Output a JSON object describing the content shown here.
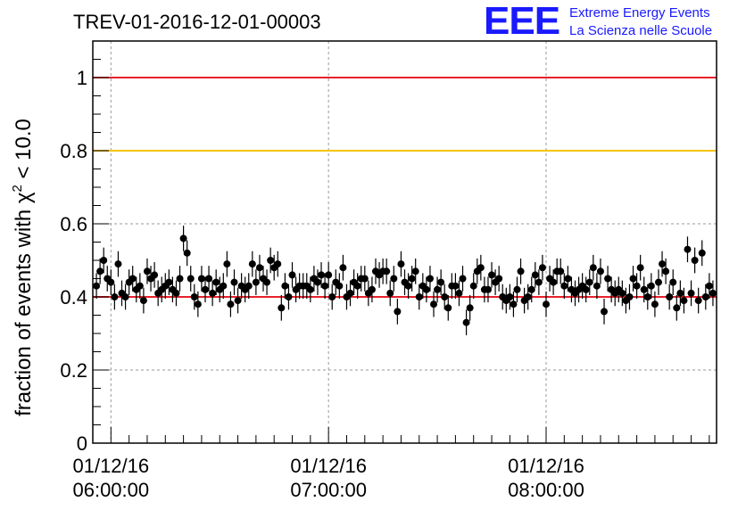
{
  "chart_data": {
    "type": "scatter",
    "title": "TREV-01-2016-12-01-00003",
    "ylabel": "fraction of events with χ² < 10.0",
    "ylabel_parts": {
      "pre": "fraction of events with ",
      "chi": "χ",
      "sup": "2",
      "post": " < 10.0"
    },
    "xlabel": "",
    "x_unit": "minutes after 01/12/16 05:55:00",
    "xlim": [
      0,
      172
    ],
    "ylim": [
      0,
      1.1
    ],
    "yticks": [
      0,
      0.2,
      0.4,
      0.6,
      0.8,
      1
    ],
    "yticklabels": [
      "0",
      "0.2",
      "0.4",
      "0.6",
      "0.8",
      "1"
    ],
    "xticks": [
      {
        "x": 5,
        "date": "01/12/16",
        "time": "06:00:00"
      },
      {
        "x": 65,
        "date": "01/12/16",
        "time": "07:00:00"
      },
      {
        "x": 125,
        "date": "01/12/16",
        "time": "08:00:00"
      }
    ],
    "grid": true,
    "reference_lines": [
      {
        "y": 1.0,
        "color": "#e8202a"
      },
      {
        "y": 0.8,
        "color": "#f5c400"
      },
      {
        "y": 0.4,
        "color": "#e8202a"
      }
    ],
    "error": 0.035,
    "x": [
      1,
      2,
      3,
      4,
      5,
      6,
      7,
      8,
      9,
      10,
      11,
      12,
      13,
      14,
      15,
      16,
      17,
      18,
      19,
      20,
      21,
      22,
      23,
      24,
      25,
      26,
      27,
      28,
      29,
      30,
      31,
      32,
      33,
      34,
      35,
      36,
      37,
      38,
      39,
      40,
      41,
      42,
      43,
      44,
      45,
      46,
      47,
      48,
      49,
      50,
      51,
      52,
      53,
      54,
      55,
      56,
      57,
      58,
      59,
      60,
      61,
      62,
      63,
      64,
      65,
      66,
      67,
      68,
      69,
      70,
      71,
      72,
      73,
      74,
      75,
      76,
      77,
      78,
      79,
      80,
      81,
      82,
      83,
      84,
      85,
      86,
      87,
      88,
      89,
      90,
      91,
      92,
      93,
      94,
      95,
      96,
      97,
      98,
      99,
      100,
      101,
      102,
      103,
      104,
      105,
      106,
      107,
      108,
      109,
      110,
      111,
      112,
      113,
      114,
      115,
      116,
      117,
      118,
      119,
      120,
      121,
      122,
      123,
      124,
      125,
      126,
      127,
      128,
      129,
      130,
      131,
      132,
      133,
      134,
      135,
      136,
      137,
      138,
      139,
      140,
      141,
      142,
      143,
      144,
      145,
      146,
      147,
      148,
      149,
      150,
      151,
      152,
      153,
      154,
      155,
      156,
      157,
      158,
      159,
      160,
      161,
      162,
      163,
      164,
      165,
      166,
      167,
      168,
      169,
      170,
      171
    ],
    "y": [
      0.43,
      0.47,
      0.5,
      0.45,
      0.44,
      0.4,
      0.49,
      0.41,
      0.4,
      0.44,
      0.45,
      0.42,
      0.43,
      0.39,
      0.47,
      0.45,
      0.46,
      0.41,
      0.42,
      0.43,
      0.44,
      0.42,
      0.41,
      0.45,
      0.56,
      0.52,
      0.45,
      0.4,
      0.38,
      0.45,
      0.42,
      0.45,
      0.41,
      0.44,
      0.42,
      0.43,
      0.49,
      0.38,
      0.44,
      0.39,
      0.43,
      0.42,
      0.43,
      0.49,
      0.44,
      0.48,
      0.45,
      0.44,
      0.5,
      0.48,
      0.49,
      0.37,
      0.43,
      0.4,
      0.46,
      0.42,
      0.43,
      0.43,
      0.43,
      0.42,
      0.45,
      0.44,
      0.46,
      0.43,
      0.46,
      0.4,
      0.44,
      0.43,
      0.48,
      0.4,
      0.41,
      0.44,
      0.43,
      0.45,
      0.45,
      0.41,
      0.42,
      0.47,
      0.46,
      0.47,
      0.47,
      0.41,
      0.45,
      0.36,
      0.49,
      0.44,
      0.43,
      0.45,
      0.47,
      0.4,
      0.43,
      0.42,
      0.45,
      0.38,
      0.42,
      0.44,
      0.4,
      0.37,
      0.43,
      0.43,
      0.41,
      0.45,
      0.33,
      0.37,
      0.43,
      0.47,
      0.48,
      0.42,
      0.42,
      0.46,
      0.44,
      0.45,
      0.4,
      0.39,
      0.4,
      0.38,
      0.42,
      0.47,
      0.39,
      0.4,
      0.42,
      0.46,
      0.44,
      0.48,
      0.38,
      0.45,
      0.44,
      0.47,
      0.47,
      0.43,
      0.45,
      0.42,
      0.41,
      0.42,
      0.43,
      0.42,
      0.44,
      0.48,
      0.43,
      0.47,
      0.36,
      0.45,
      0.42,
      0.41,
      0.42,
      0.41,
      0.39,
      0.4,
      0.45,
      0.43,
      0.48,
      0.42,
      0.4,
      0.43,
      0.38,
      0.44,
      0.49,
      0.47,
      0.4,
      0.44,
      0.37,
      0.41,
      0.39,
      0.53,
      0.41,
      0.5,
      0.39,
      0.52,
      0.4,
      0.43,
      0.41
    ]
  },
  "logo": {
    "mark": "EEE",
    "line1": "Extreme Energy Events",
    "line2": "La Scienza nelle Scuole"
  },
  "colors": {
    "logo": "#1a1aff",
    "marker": "#000000",
    "grid": "#9a9a9a"
  }
}
